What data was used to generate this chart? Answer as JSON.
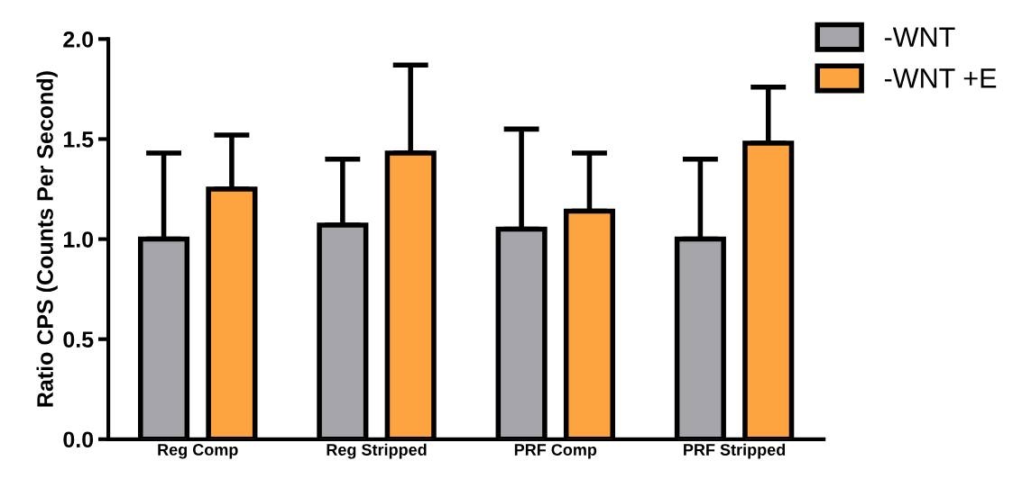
{
  "chart_data": {
    "type": "bar",
    "ylabel": "Ratio CPS (Counts Per Second)",
    "categories": [
      "Reg Comp",
      "Reg Stripped",
      "PRF Comp",
      "PRF Stripped"
    ],
    "series": [
      {
        "name": "-WNT",
        "color": "#a6a5aa",
        "values": [
          1.0,
          1.07,
          1.05,
          1.0
        ],
        "errors": [
          [
            1.0,
            1.43
          ],
          [
            1.07,
            1.4
          ],
          [
            1.05,
            1.55
          ],
          [
            1.0,
            1.4
          ]
        ]
      },
      {
        "name": "-WNT +E",
        "color": "#fda340",
        "values": [
          1.25,
          1.43,
          1.14,
          1.48
        ],
        "errors": [
          [
            1.25,
            1.52
          ],
          [
            1.43,
            1.87
          ],
          [
            1.14,
            1.43
          ],
          [
            1.48,
            1.76
          ]
        ]
      }
    ],
    "ylim": [
      0,
      2.0
    ],
    "yticks": [
      {
        "value": 0,
        "label": "0.0"
      },
      {
        "value": 0.5,
        "label": "0.5"
      },
      {
        "value": 1.0,
        "label": "1.0"
      },
      {
        "value": 1.5,
        "label": "1.5"
      },
      {
        "value": 2.0,
        "label": "2.0"
      }
    ],
    "grid": false,
    "legend": "top right"
  }
}
